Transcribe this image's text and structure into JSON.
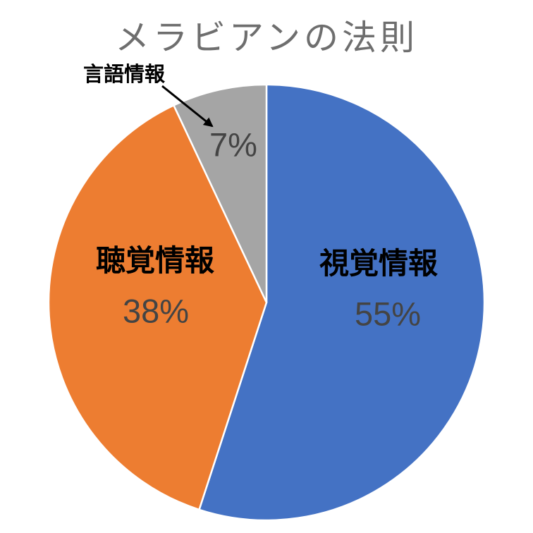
{
  "chart_data": {
    "type": "pie",
    "title": "メラビアンの法則",
    "direction": "clockwise",
    "start_angle_deg": 0,
    "legend": "none",
    "slices": [
      {
        "label": "視覚情報",
        "value": 55,
        "percent_label": "55%",
        "color": "#4472C4",
        "label_placement": "inside"
      },
      {
        "label": "聴覚情報",
        "value": 38,
        "percent_label": "38%",
        "color": "#ED7D31",
        "label_placement": "inside"
      },
      {
        "label": "言語情報",
        "value": 7,
        "percent_label": "7%",
        "color": "#A5A5A5",
        "label_placement": "outside-arrow-callout"
      }
    ],
    "annotation": {
      "style": "straight-arrow",
      "points_to_slice": "言語情報"
    },
    "colors": {
      "title": "#6e6e6e",
      "slice_name_text": "#000000",
      "percent_text": "#444444",
      "separator": "#ffffff",
      "arrow": "#000000",
      "background": "#ffffff"
    }
  }
}
